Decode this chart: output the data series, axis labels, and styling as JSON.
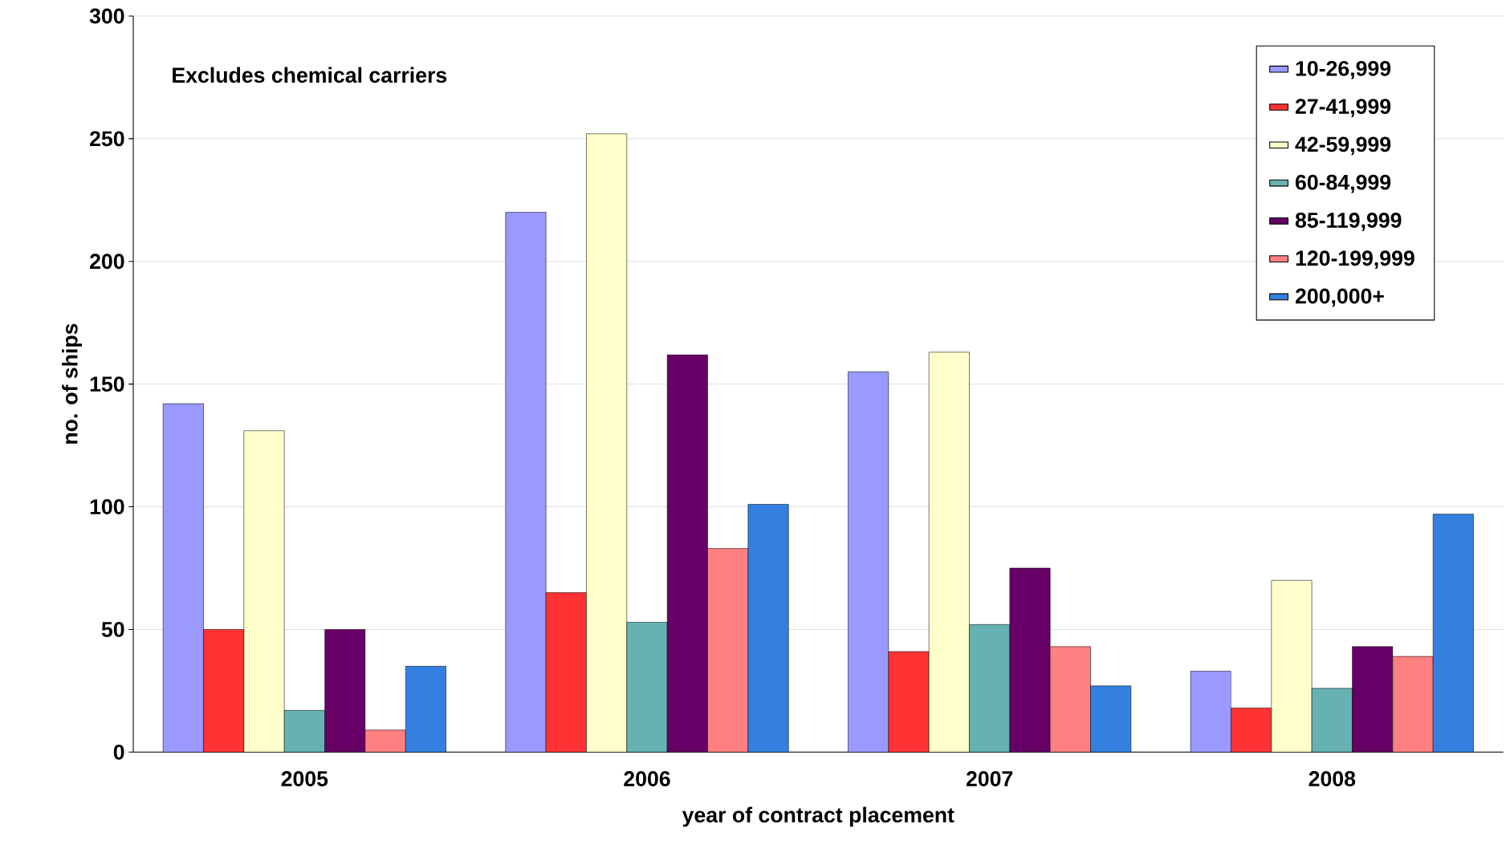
{
  "chart_data": {
    "type": "bar",
    "xlabel": "year of contract placement",
    "ylabel": "no. of ships",
    "categories": [
      "2005",
      "2006",
      "2007",
      "2008"
    ],
    "series": [
      {
        "name": "10-26,999",
        "color": "#9999ff",
        "values": [
          142,
          220,
          155,
          33
        ]
      },
      {
        "name": "27-41,999",
        "color": "#ff3333",
        "values": [
          50,
          65,
          41,
          18
        ]
      },
      {
        "name": "42-59,999",
        "color": "#ffffcc",
        "values": [
          131,
          252,
          163,
          70
        ]
      },
      {
        "name": "60-84,999",
        "color": "#66b2b2",
        "values": [
          17,
          53,
          52,
          26
        ]
      },
      {
        "name": "85-119,999",
        "color": "#660066",
        "values": [
          50,
          162,
          75,
          43
        ]
      },
      {
        "name": "120-199,999",
        "color": "#ff8080",
        "values": [
          9,
          83,
          43,
          39
        ]
      },
      {
        "name": "200,000+",
        "color": "#3380e0",
        "values": [
          35,
          101,
          27,
          97
        ]
      }
    ],
    "ylim": [
      0,
      300
    ],
    "yticks": [
      0,
      50,
      100,
      150,
      200,
      250,
      300
    ],
    "grid": "y",
    "legend": "top right",
    "annotations": [
      "Excludes chemical carriers"
    ]
  }
}
